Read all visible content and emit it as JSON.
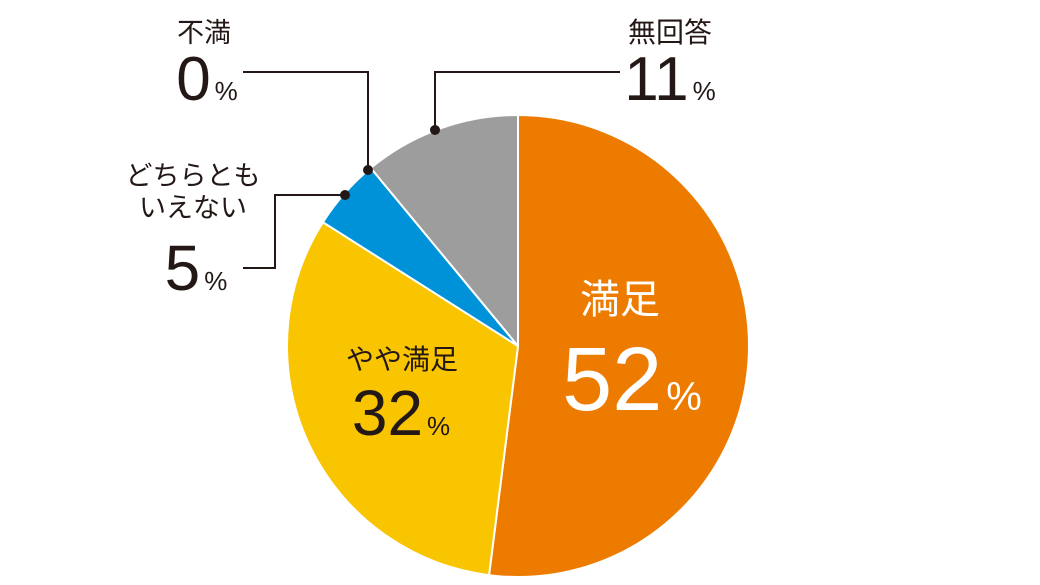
{
  "chart_data": {
    "type": "pie",
    "categories": [
      "満足",
      "やや満足",
      "どちらともいえない",
      "不満",
      "無回答"
    ],
    "values": [
      52,
      32,
      5,
      0,
      11
    ],
    "unit": "%",
    "colors": [
      "#EC7B00",
      "#F9C400",
      "#0092D8",
      null,
      "#9D9D9D"
    ]
  }
}
